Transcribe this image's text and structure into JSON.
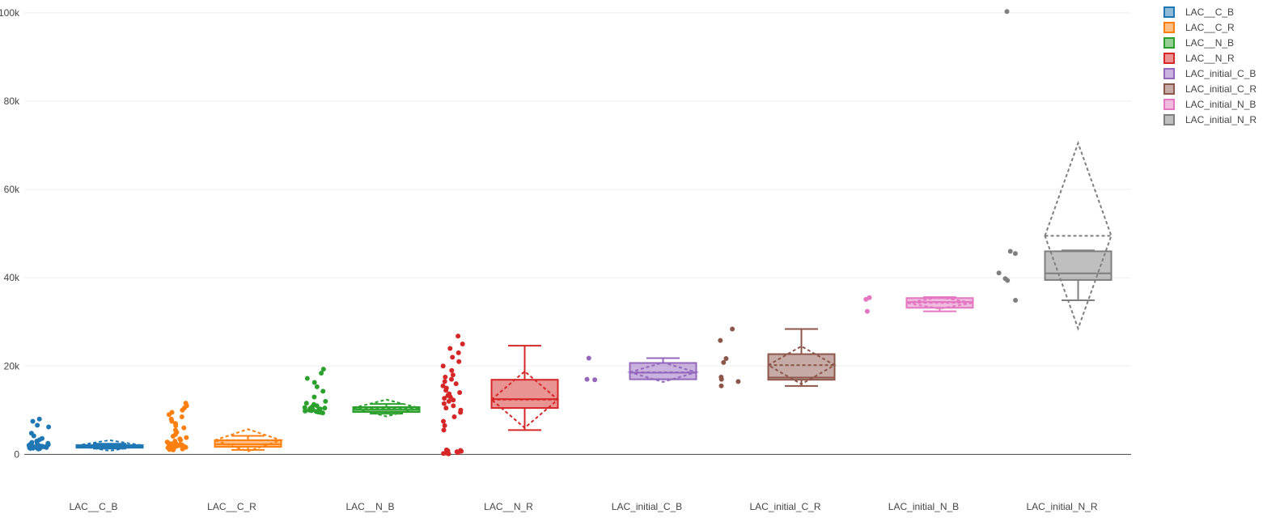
{
  "chart_data": {
    "type": "box",
    "title": "",
    "xlabel": "",
    "ylabel": "",
    "ylim": [
      -8000,
      102000
    ],
    "y_ticks": [
      {
        "value": 0,
        "label": "0"
      },
      {
        "value": 20000,
        "label": "20k"
      },
      {
        "value": 40000,
        "label": "40k"
      },
      {
        "value": 60000,
        "label": "60k"
      },
      {
        "value": 80000,
        "label": "80k"
      },
      {
        "value": 100000,
        "label": "100k"
      }
    ],
    "grid": true,
    "legend_position": "top-right",
    "box_options": {
      "boxmean": "sd",
      "points": "all"
    },
    "series": [
      {
        "name": "LAC__C_B",
        "color": "#1f77b4",
        "box": {
          "q1": 1500,
          "median": 1800,
          "q3": 2100,
          "lower_fence": 1300,
          "upper_fence": 2400,
          "mean": 2000,
          "sd": 1200
        },
        "points": [
          1200,
          1300,
          1350,
          1400,
          1450,
          1500,
          1500,
          1550,
          1600,
          1600,
          1650,
          1700,
          1700,
          1750,
          1800,
          1800,
          1850,
          1900,
          1900,
          1950,
          2000,
          2050,
          2100,
          2200,
          2300,
          2400,
          2500,
          2700,
          3000,
          3300,
          3600,
          4200,
          4800,
          6200,
          6600,
          7500,
          8000
        ]
      },
      {
        "name": "LAC__C_R",
        "color": "#ff7f0e",
        "box": {
          "q1": 1700,
          "median": 2300,
          "q3": 3200,
          "lower_fence": 1000,
          "upper_fence": 4200,
          "mean": 3200,
          "sd": 2500
        },
        "points": [
          1000,
          1100,
          1200,
          1300,
          1400,
          1500,
          1600,
          1600,
          1700,
          1800,
          1900,
          2000,
          2000,
          2100,
          2200,
          2300,
          2400,
          2500,
          2600,
          2800,
          3000,
          3200,
          3500,
          3800,
          4100,
          4500,
          5000,
          5500,
          6000,
          6500,
          7000,
          7500,
          8000,
          8500,
          9000,
          9500,
          10000,
          10500,
          11000,
          11600
        ]
      },
      {
        "name": "LAC__N_B",
        "color": "#2ca02c",
        "box": {
          "q1": 9600,
          "median": 10100,
          "q3": 10700,
          "lower_fence": 9200,
          "upper_fence": 11400,
          "mean": 10500,
          "sd": 1900
        },
        "points": [
          9400,
          9500,
          9600,
          9700,
          9800,
          9900,
          10000,
          10000,
          10100,
          10200,
          10300,
          10400,
          10500,
          10600,
          10800,
          11000,
          11300,
          11600,
          12000,
          13000,
          14300,
          15300,
          16300,
          17200,
          18400,
          19300
        ]
      },
      {
        "name": "LAC__N_R",
        "color": "#d62728",
        "box": {
          "q1": 10500,
          "median": 12500,
          "q3": 16900,
          "lower_fence": 5500,
          "upper_fence": 24600,
          "mean": 12400,
          "sd": 6400
        },
        "points": [
          100,
          200,
          300,
          400,
          500,
          600,
          700,
          800,
          900,
          1000,
          5500,
          6500,
          7500,
          8500,
          9500,
          10000,
          10500,
          11000,
          11500,
          12000,
          12300,
          12700,
          13000,
          13300,
          13700,
          14000,
          14500,
          15000,
          15500,
          16000,
          16500,
          17000,
          17500,
          18000,
          19000,
          20000,
          21000,
          22000,
          23000,
          24000,
          25000,
          26800
        ]
      },
      {
        "name": "LAC_initial_C_B",
        "color": "#9467bd",
        "box": {
          "q1": 17000,
          "median": 18500,
          "q3": 20700,
          "lower_fence": 17000,
          "upper_fence": 21800,
          "mean": 18600,
          "sd": 2200
        },
        "points": [
          16900,
          17000,
          21800
        ]
      },
      {
        "name": "LAC_initial_C_R",
        "color": "#8c564b",
        "box": {
          "q1": 16900,
          "median": 17400,
          "q3": 22700,
          "lower_fence": 15500,
          "upper_fence": 28400,
          "mean": 20200,
          "sd": 4300
        },
        "points": [
          15500,
          16500,
          17000,
          17500,
          20800,
          21700,
          25800,
          28400
        ]
      },
      {
        "name": "LAC_initial_N_B",
        "color": "#e377c2",
        "box": {
          "q1": 33200,
          "median": 34500,
          "q3": 35400,
          "lower_fence": 32400,
          "upper_fence": 35600,
          "mean": 34300,
          "sd": 1300
        },
        "points": [
          32400,
          35100,
          35500
        ]
      },
      {
        "name": "LAC_initial_N_R",
        "color": "#7f7f7f",
        "box": {
          "q1": 39500,
          "median": 41000,
          "q3": 46000,
          "lower_fence": 34900,
          "upper_fence": 46200,
          "mean": 49500,
          "sd": 21000
        },
        "points": [
          34900,
          39400,
          39800,
          41100,
          45500,
          46000,
          100300
        ]
      }
    ]
  }
}
